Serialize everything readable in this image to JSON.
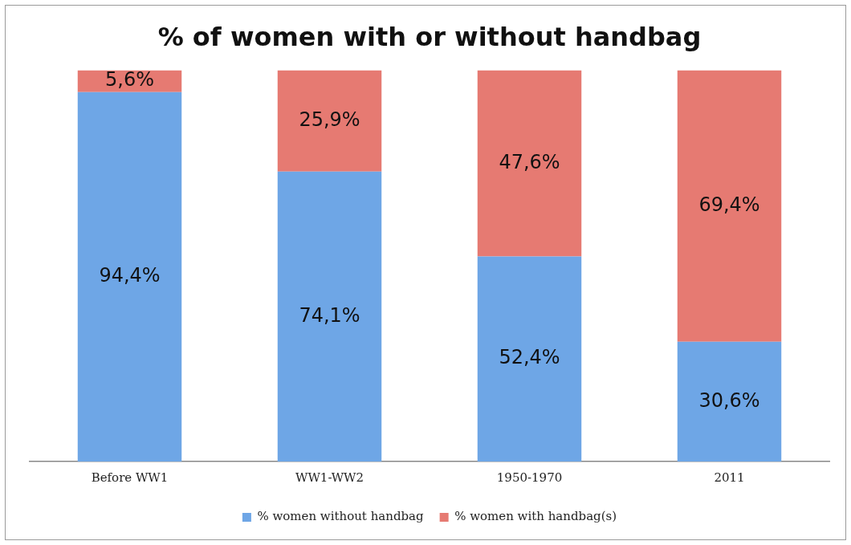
{
  "chart_data": {
    "type": "bar",
    "title": "% of women with or without handbag",
    "stacked": true,
    "categories": [
      "Before WW1",
      "WW1-WW2",
      "1950-1970",
      "2011"
    ],
    "series": [
      {
        "name": "% women without handbag",
        "color": "#6ea6e6",
        "values": [
          94.4,
          74.1,
          52.4,
          30.6
        ],
        "value_labels": [
          "94,4%",
          "74,1%",
          "52,4%",
          "30,6%"
        ]
      },
      {
        "name": "% women with handbag(s)",
        "color": "#e67a72",
        "values": [
          5.6,
          25.9,
          47.6,
          69.4
        ],
        "value_labels": [
          "5,6%",
          "25,9%",
          "47,6%",
          "69,4%"
        ]
      }
    ],
    "grid": false,
    "legend": "bottom",
    "tick_labels": "x"
  }
}
